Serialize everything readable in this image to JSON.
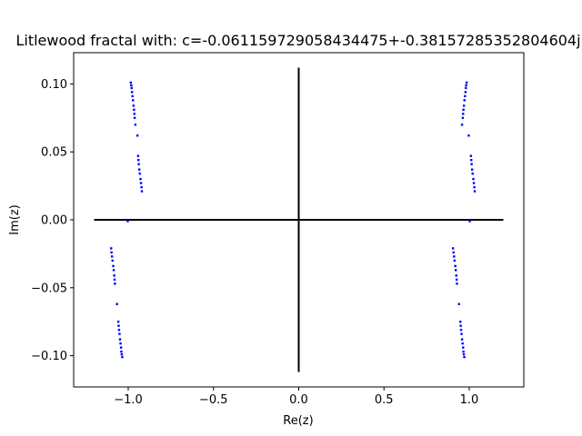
{
  "chart_data": {
    "type": "scatter",
    "title": "Litlewood fractal with: c=-0.061159729058434475+-0.38157285352804604j",
    "xlabel": "Re(z)",
    "ylabel": "Im(z)",
    "xlim": [
      -1.32,
      1.32
    ],
    "ylim": [
      -0.123,
      0.123
    ],
    "xticks": [
      -1.0,
      -0.5,
      0.0,
      0.5,
      1.0
    ],
    "xtick_labels": [
      "−1.0",
      "−0.5",
      "0.0",
      "0.5",
      "1.0"
    ],
    "yticks": [
      -0.1,
      -0.05,
      0.0,
      0.05,
      0.1
    ],
    "ytick_labels": [
      "−0.10",
      "−0.05",
      "0.00",
      "0.05",
      "0.10"
    ],
    "grid": false,
    "reference_lines": [
      {
        "name": "real-axis",
        "x": [
          -1.2,
          1.2
        ],
        "y": [
          0,
          0
        ]
      },
      {
        "name": "imaginary-axis",
        "x": [
          0,
          0
        ],
        "y": [
          -0.112,
          0.112
        ]
      }
    ],
    "series": [
      {
        "color": "#0000ff",
        "points": [
          [
            -0.985,
            0.101
          ],
          [
            -0.982,
            0.099
          ],
          [
            -0.98,
            0.097
          ],
          [
            -0.978,
            0.094
          ],
          [
            -0.975,
            0.091
          ],
          [
            -0.972,
            0.088
          ],
          [
            -0.969,
            0.084
          ],
          [
            -0.966,
            0.081
          ],
          [
            -0.964,
            0.078
          ],
          [
            -0.962,
            0.075
          ],
          [
            -0.958,
            0.07
          ],
          [
            -0.946,
            0.062
          ],
          [
            -0.942,
            0.047
          ],
          [
            -0.94,
            0.044
          ],
          [
            -0.938,
            0.041
          ],
          [
            -0.935,
            0.037
          ],
          [
            -0.932,
            0.034
          ],
          [
            -0.928,
            0.03
          ],
          [
            -0.925,
            0.027
          ],
          [
            -0.922,
            0.024
          ],
          [
            -0.92,
            0.021
          ],
          [
            -1.003,
            -0.001
          ],
          [
            0.985,
            0.101
          ],
          [
            0.982,
            0.099
          ],
          [
            0.98,
            0.097
          ],
          [
            0.978,
            0.094
          ],
          [
            0.975,
            0.091
          ],
          [
            0.972,
            0.088
          ],
          [
            0.969,
            0.084
          ],
          [
            0.966,
            0.081
          ],
          [
            0.964,
            0.078
          ],
          [
            0.962,
            0.075
          ],
          [
            0.958,
            0.07
          ],
          [
            0.997,
            0.062
          ],
          [
            1.01,
            0.047
          ],
          [
            1.012,
            0.044
          ],
          [
            1.014,
            0.041
          ],
          [
            1.017,
            0.037
          ],
          [
            1.02,
            0.034
          ],
          [
            1.024,
            0.03
          ],
          [
            1.027,
            0.027
          ],
          [
            1.03,
            0.024
          ],
          [
            1.032,
            0.021
          ],
          [
            1.003,
            -0.001
          ],
          [
            -1.1,
            -0.021
          ],
          [
            -1.098,
            -0.024
          ],
          [
            -1.095,
            -0.027
          ],
          [
            -1.092,
            -0.03
          ],
          [
            -1.088,
            -0.034
          ],
          [
            -1.085,
            -0.037
          ],
          [
            -1.082,
            -0.041
          ],
          [
            -1.08,
            -0.044
          ],
          [
            -1.078,
            -0.047
          ],
          [
            -1.066,
            -0.062
          ],
          [
            -1.058,
            -0.075
          ],
          [
            -1.056,
            -0.078
          ],
          [
            -1.054,
            -0.081
          ],
          [
            -1.051,
            -0.084
          ],
          [
            -1.048,
            -0.088
          ],
          [
            -1.045,
            -0.091
          ],
          [
            -1.042,
            -0.094
          ],
          [
            -1.04,
            -0.097
          ],
          [
            -1.038,
            -0.099
          ],
          [
            -1.035,
            -0.101
          ],
          [
            0.905,
            -0.021
          ],
          [
            0.908,
            -0.024
          ],
          [
            0.911,
            -0.027
          ],
          [
            0.914,
            -0.03
          ],
          [
            0.918,
            -0.034
          ],
          [
            0.921,
            -0.037
          ],
          [
            0.924,
            -0.041
          ],
          [
            0.926,
            -0.044
          ],
          [
            0.928,
            -0.047
          ],
          [
            0.94,
            -0.062
          ],
          [
            0.948,
            -0.075
          ],
          [
            0.95,
            -0.078
          ],
          [
            0.952,
            -0.081
          ],
          [
            0.955,
            -0.084
          ],
          [
            0.958,
            -0.088
          ],
          [
            0.961,
            -0.091
          ],
          [
            0.964,
            -0.094
          ],
          [
            0.966,
            -0.097
          ],
          [
            0.968,
            -0.099
          ],
          [
            0.971,
            -0.101
          ]
        ]
      }
    ]
  }
}
